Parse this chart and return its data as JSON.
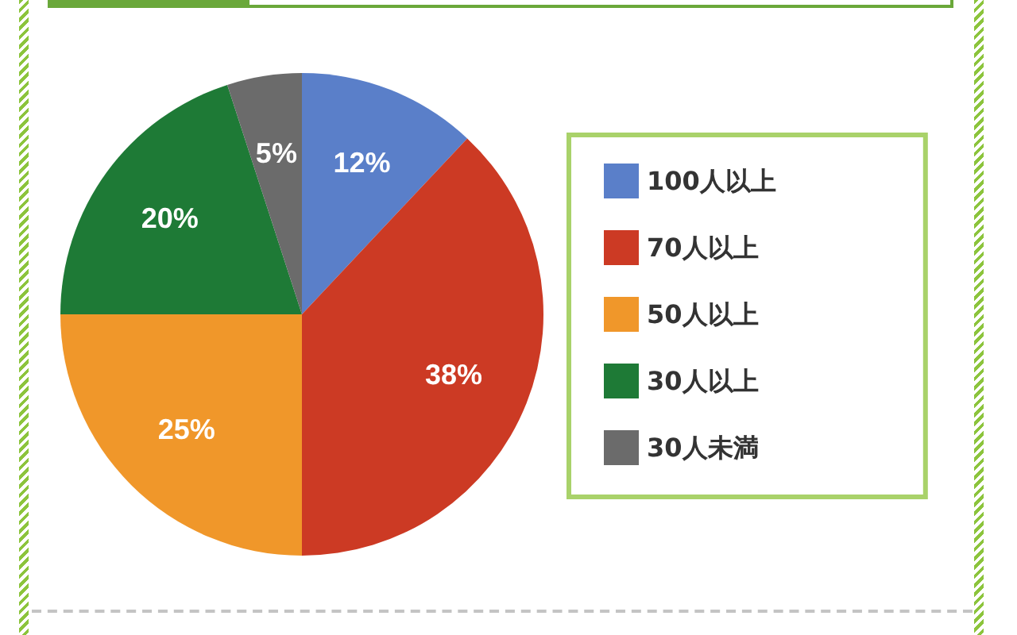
{
  "chart_data": {
    "type": "pie",
    "categories": [
      "100人以上",
      "70人以上",
      "50人以上",
      "30人以上",
      "30人未満"
    ],
    "values": [
      12,
      38,
      25,
      20,
      5
    ],
    "colors": [
      "#5a7fc9",
      "#cc3a24",
      "#f0972a",
      "#1e7a36",
      "#6b6b6b"
    ],
    "value_labels": [
      "12%",
      "38%",
      "25%",
      "20%",
      "5%"
    ],
    "legend": "right"
  }
}
